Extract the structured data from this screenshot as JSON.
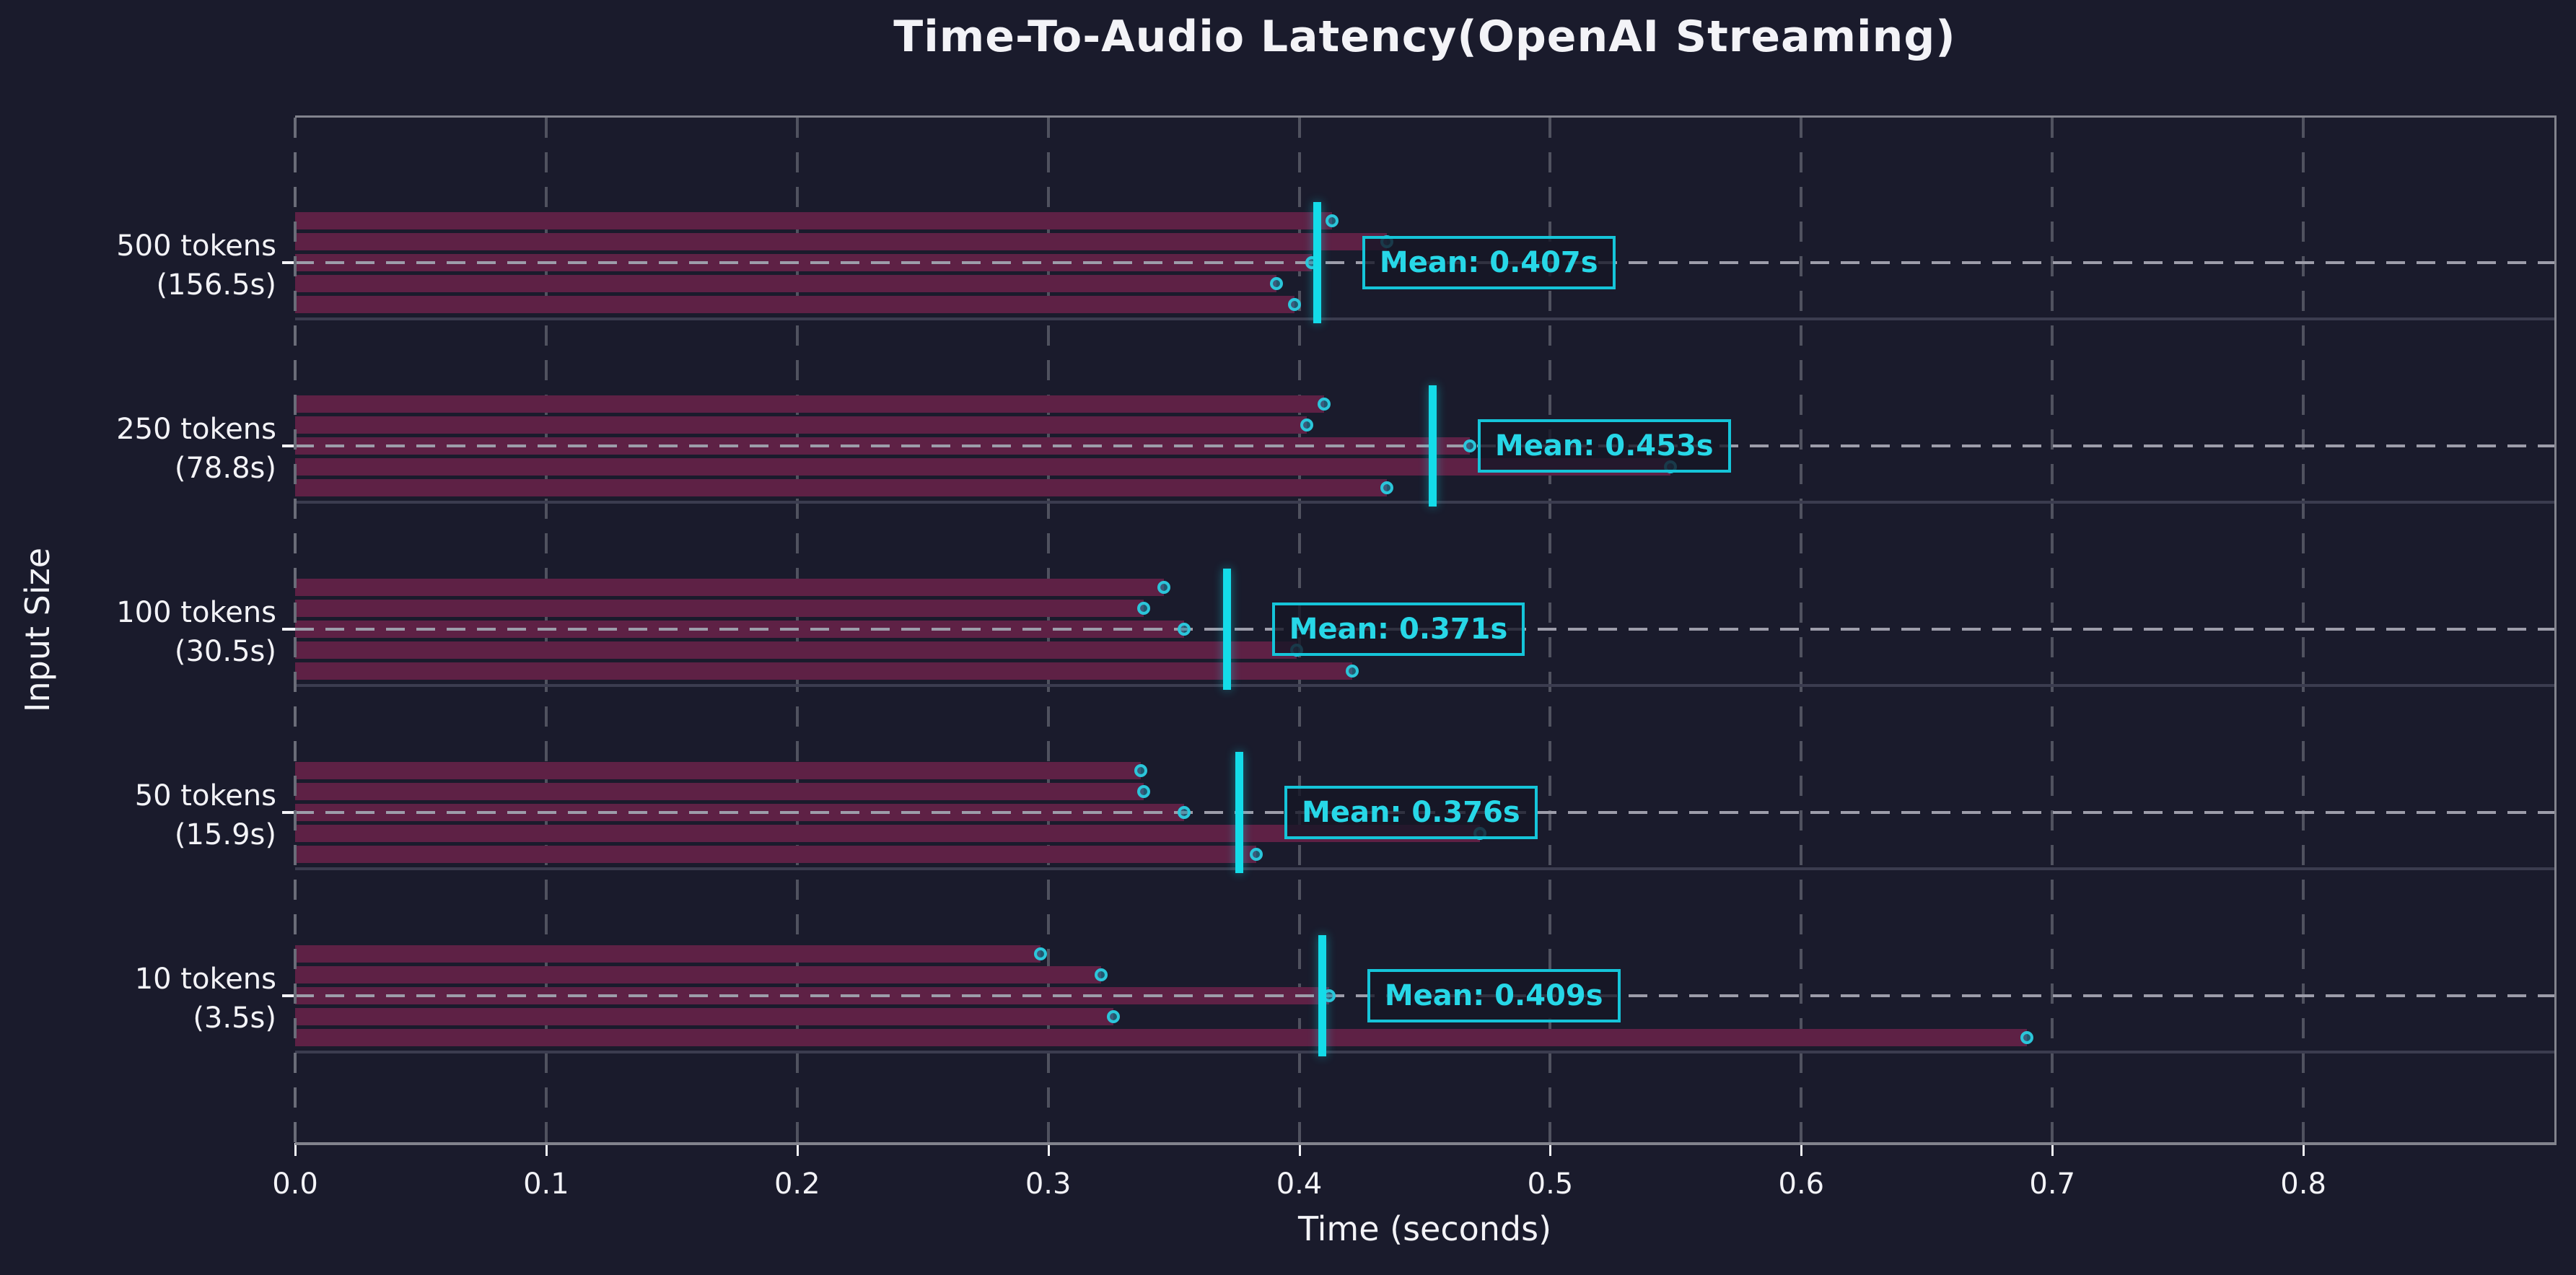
{
  "chart_data": {
    "type": "bar",
    "orientation": "horizontal",
    "title": "Time-To-Audio Latency(OpenAI Streaming)",
    "xlabel": "Time (seconds)",
    "ylabel": "Input Size",
    "xlim": [
      0.0,
      0.9
    ],
    "x_ticks": [
      "0.0",
      "0.1",
      "0.2",
      "0.3",
      "0.4",
      "0.5",
      "0.6",
      "0.7",
      "0.8"
    ],
    "x_tick_values": [
      0.0,
      0.1,
      0.2,
      0.3,
      0.4,
      0.5,
      0.6,
      0.7,
      0.8
    ],
    "grid": {
      "vertical": "dashed at each x tick",
      "horizontal": "dashed line through each group center, solid separator below each group"
    },
    "legend": "none",
    "groups": [
      {
        "label": "500 tokens",
        "sublabel": "(156.5s)",
        "runs": [
          0.413,
          0.435,
          0.405,
          0.391,
          0.398
        ],
        "mean": 0.407,
        "mean_label": "Mean: 0.407s"
      },
      {
        "label": "250 tokens",
        "sublabel": "(78.8s)",
        "runs": [
          0.41,
          0.403,
          0.468,
          0.548,
          0.435
        ],
        "mean": 0.453,
        "mean_label": "Mean: 0.453s"
      },
      {
        "label": "100 tokens",
        "sublabel": "(30.5s)",
        "runs": [
          0.346,
          0.338,
          0.354,
          0.399,
          0.421
        ],
        "mean": 0.371,
        "mean_label": "Mean: 0.371s"
      },
      {
        "label": "50 tokens",
        "sublabel": "(15.9s)",
        "runs": [
          0.337,
          0.338,
          0.354,
          0.472,
          0.383
        ],
        "mean": 0.376,
        "mean_label": "Mean: 0.376s"
      },
      {
        "label": "10 tokens",
        "sublabel": "(3.5s)",
        "runs": [
          0.297,
          0.321,
          0.412,
          0.326,
          0.69
        ],
        "mean": 0.409,
        "mean_label": "Mean: 0.409s"
      }
    ],
    "colors": {
      "background": "#1a1b2c",
      "bar": "#5e2145",
      "dot_ring": "#2bc6da",
      "dot_fill": "rgba(34,141,168,0.55)",
      "mean_line": "#14dce9",
      "mean_text": "#27d7e7",
      "mean_box_border": "#15c5d9",
      "mean_box_fill": "rgba(21,22,38,0.8)",
      "grid_vertical": "#50525f",
      "grid_horizontal": "#9d9daa",
      "separator": "#3b3c4f",
      "spine": "#82838d",
      "left_axis_dash": "#6a6c78",
      "text": "#f3f3f7"
    }
  }
}
